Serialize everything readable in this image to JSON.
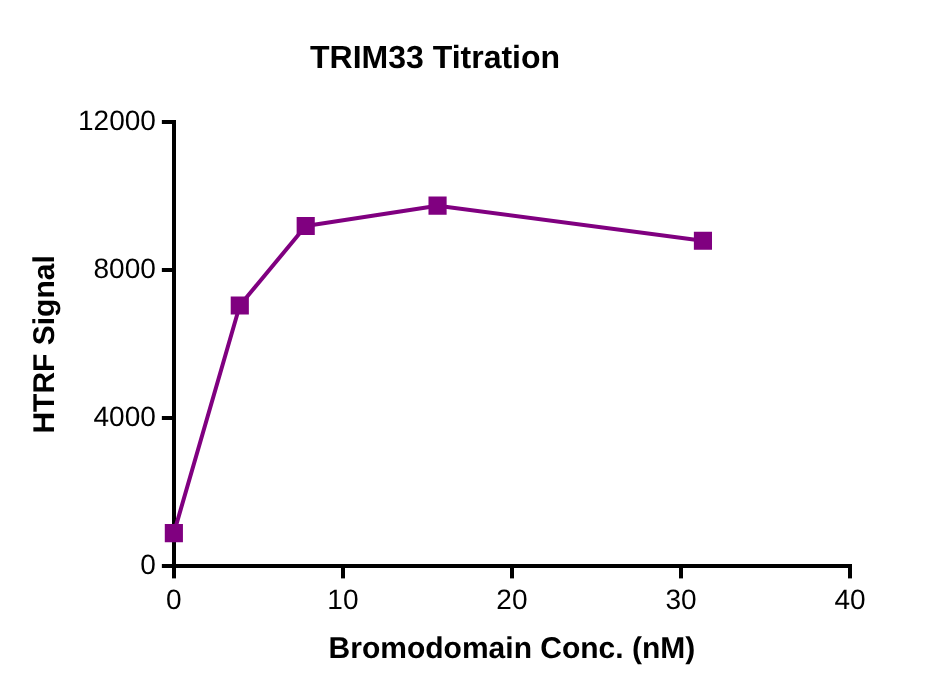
{
  "chart_data": {
    "type": "line",
    "title": "TRIM33 Titration",
    "xlabel": "Bromodomain Conc. (nM)",
    "ylabel": "HTRF Signal",
    "x": [
      0,
      3.9,
      7.8,
      15.6,
      31.3
    ],
    "series": [
      {
        "color": "#800080",
        "values": [
          900,
          7050,
          9200,
          9750,
          8800
        ]
      }
    ],
    "xlim": [
      0,
      40
    ],
    "xticks": [
      0,
      10,
      20,
      30,
      40
    ],
    "ylim": [
      0,
      12000
    ],
    "yticks": [
      0,
      4000,
      8000,
      12000
    ],
    "grid": false,
    "legend": false,
    "marker": "square",
    "line_style": "solid"
  }
}
